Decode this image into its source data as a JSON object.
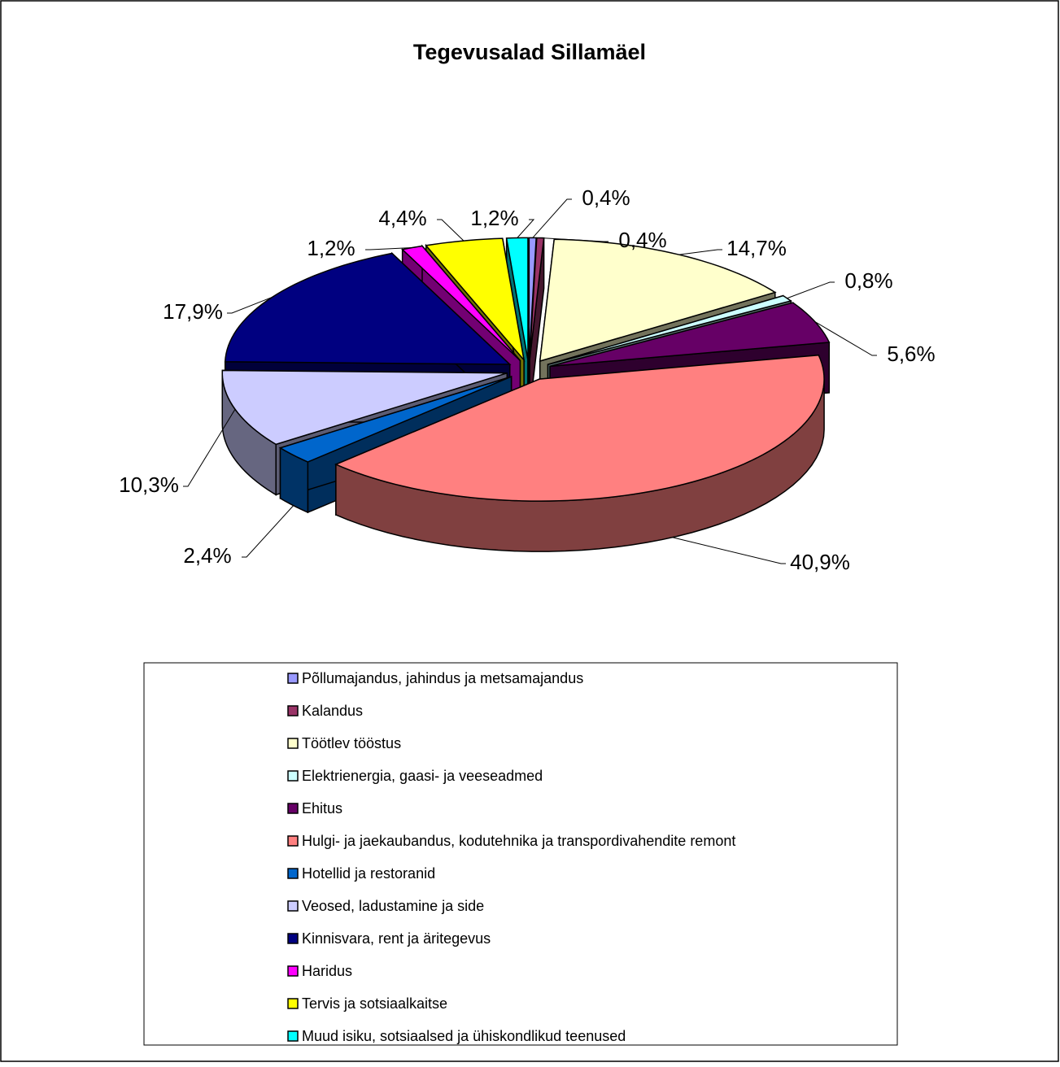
{
  "chart_data": {
    "type": "pie3d",
    "title": "Tegevusalad Sillamäel",
    "categories": [
      "Põllumajandus, jahindus ja metsamajandus",
      "Kalandus",
      "Töötlev tööstus",
      "Elektrienergia, gaasi- ja veeseadmed",
      "Ehitus",
      "Hulgi- ja jaekaubandus, kodutehnika ja transpordivahendite remont",
      "Hotellid ja restoranid",
      "Veosed, ladustamine ja side",
      "Kinnisvara, rent ja äritegevus",
      "Haridus",
      "Tervis ja sotsiaalkaitse",
      "Muud isiku, sotsiaalsed ja ühiskondlikud teenused"
    ],
    "values": [
      0.4,
      0.4,
      14.7,
      0.8,
      5.6,
      40.9,
      2.4,
      10.3,
      17.9,
      1.2,
      4.4,
      1.2
    ],
    "value_labels": [
      "0,4%",
      "0,4%",
      "14,7%",
      "0,8%",
      "5,6%",
      "40,9%",
      "2,4%",
      "10,3%",
      "17,9%",
      "1,2%",
      "4,4%",
      "1,2%"
    ],
    "colors": [
      "#9999ff",
      "#993366",
      "#ffffcc",
      "#ccffff",
      "#660066",
      "#ff8080",
      "#0066cc",
      "#ccccff",
      "#000080",
      "#ff00ff",
      "#ffff00",
      "#00ffff"
    ],
    "legend": "bottom"
  }
}
